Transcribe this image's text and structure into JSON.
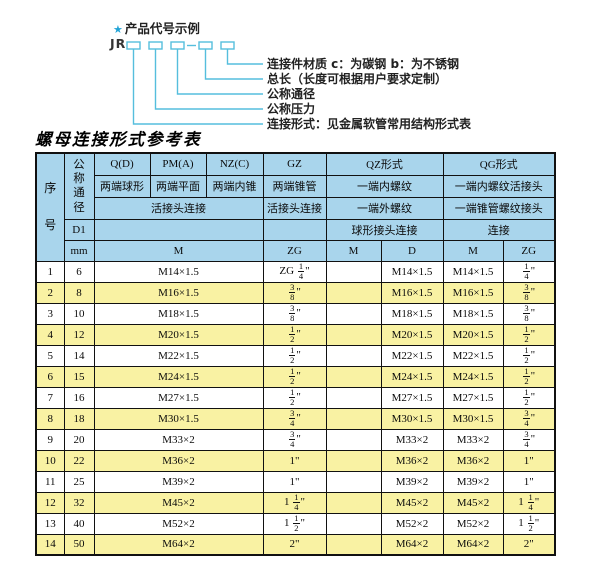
{
  "colors": {
    "accent_cyan": "#55bedd",
    "star_blue": "#22a3d6",
    "header_blue": "#a9d5ec",
    "row_yellow": "#f9f2a3",
    "border_black": "#111111"
  },
  "diagram": {
    "star_icon": "★",
    "title": "产品代号示例",
    "code_prefix": "JR",
    "labels": [
      "连接件材质  c：为碳钢  b：为不锈钢",
      "总长（长度可根据用户要求定制）",
      "公称通径",
      "公称压力",
      "连接形式：见金属软管常用结构形式表"
    ]
  },
  "table": {
    "title": "螺母连接形式参考表",
    "header": {
      "seq": "序号",
      "dn": "公称通径",
      "d1": "D1",
      "mm": "mm",
      "col_q": "Q(D)",
      "col_pm": "PM(A)",
      "col_nz": "NZ(C)",
      "col_gz": "GZ",
      "col_qz": "QZ形式",
      "col_qg": "QG形式",
      "q_desc": "两端球形",
      "pm_desc": "两端平面",
      "nz_desc": "两端内锥",
      "gz_desc": "两端锥管",
      "qz_desc1": "一端内螺纹",
      "qg_desc1": "一端内螺纹活接头",
      "union_conn": "活接头连接",
      "gz_conn": "活接头连接",
      "qz_desc2": "一端外螺纹",
      "qg_desc2": "一端锥管螺纹接头",
      "qz_conn": "球形接头连接",
      "qg_conn": "连接",
      "m_label": "M",
      "zg_label": "ZG",
      "qz_m_label": "M",
      "qz_d_label": "D",
      "qg_m_label": "M",
      "qg_zg_label": "ZG"
    },
    "rows": [
      {
        "no": "1",
        "dn": "6",
        "m": "M14×1.5",
        "gz": "ZG 1/4\"",
        "qz_m": "",
        "qz_d": "M14×1.5",
        "qg_m": "M14×1.5",
        "qg_zg": "1/4\""
      },
      {
        "no": "2",
        "dn": "8",
        "m": "M16×1.5",
        "gz": "3/8\"",
        "qz_m": "",
        "qz_d": "M16×1.5",
        "qg_m": "M16×1.5",
        "qg_zg": "3/8\""
      },
      {
        "no": "3",
        "dn": "10",
        "m": "M18×1.5",
        "gz": "3/8\"",
        "qz_m": "",
        "qz_d": "M18×1.5",
        "qg_m": "M18×1.5",
        "qg_zg": "3/8\""
      },
      {
        "no": "4",
        "dn": "12",
        "m": "M20×1.5",
        "gz": "1/2\"",
        "qz_m": "",
        "qz_d": "M20×1.5",
        "qg_m": "M20×1.5",
        "qg_zg": "1/2\""
      },
      {
        "no": "5",
        "dn": "14",
        "m": "M22×1.5",
        "gz": "1/2\"",
        "qz_m": "",
        "qz_d": "M22×1.5",
        "qg_m": "M22×1.5",
        "qg_zg": "1/2\""
      },
      {
        "no": "6",
        "dn": "15",
        "m": "M24×1.5",
        "gz": "1/2\"",
        "qz_m": "",
        "qz_d": "M24×1.5",
        "qg_m": "M24×1.5",
        "qg_zg": "1/2\""
      },
      {
        "no": "7",
        "dn": "16",
        "m": "M27×1.5",
        "gz": "1/2\"",
        "qz_m": "",
        "qz_d": "M27×1.5",
        "qg_m": "M27×1.5",
        "qg_zg": "1/2\""
      },
      {
        "no": "8",
        "dn": "18",
        "m": "M30×1.5",
        "gz": "3/4\"",
        "qz_m": "",
        "qz_d": "M30×1.5",
        "qg_m": "M30×1.5",
        "qg_zg": "3/4\""
      },
      {
        "no": "9",
        "dn": "20",
        "m": "M33×2",
        "gz": "3/4\"",
        "qz_m": "",
        "qz_d": "M33×2",
        "qg_m": "M33×2",
        "qg_zg": "3/4\""
      },
      {
        "no": "10",
        "dn": "22",
        "m": "M36×2",
        "gz": "1\"",
        "qz_m": "",
        "qz_d": "M36×2",
        "qg_m": "M36×2",
        "qg_zg": "1\""
      },
      {
        "no": "11",
        "dn": "25",
        "m": "M39×2",
        "gz": "1\"",
        "qz_m": "",
        "qz_d": "M39×2",
        "qg_m": "M39×2",
        "qg_zg": "1\""
      },
      {
        "no": "12",
        "dn": "32",
        "m": "M45×2",
        "gz": "1 1/4\"",
        "qz_m": "",
        "qz_d": "M45×2",
        "qg_m": "M45×2",
        "qg_zg": "1 1/4\""
      },
      {
        "no": "13",
        "dn": "40",
        "m": "M52×2",
        "gz": "1 1/2\"",
        "qz_m": "",
        "qz_d": "M52×2",
        "qg_m": "M52×2",
        "qg_zg": "1 1/2\""
      },
      {
        "no": "14",
        "dn": "50",
        "m": "M64×2",
        "gz": "2\"",
        "qz_m": "",
        "qz_d": "M64×2",
        "qg_m": "M64×2",
        "qg_zg": "2\""
      }
    ]
  }
}
